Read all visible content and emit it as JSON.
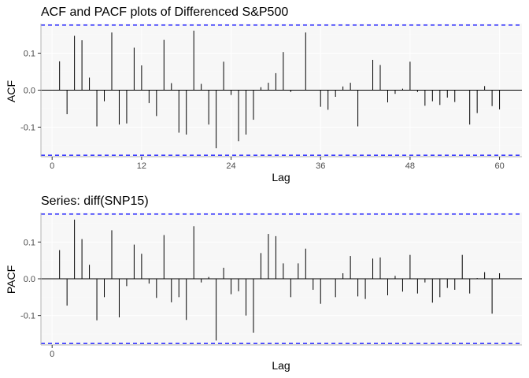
{
  "colors": {
    "panel_bg": "#f7f7f7",
    "grid_major": "#ffffff",
    "grid_minor": "#fbfbfb",
    "bar": "#000000",
    "zero_line": "#000000",
    "ci_line": "#0000ff",
    "axis": "#000000",
    "tick_label": "#4d4d4d"
  },
  "chart_data": [
    {
      "type": "bar",
      "subtype": "acf",
      "title": "ACF and PACF plots of Differenced S&P500",
      "xlabel": "Lag",
      "ylabel": "ACF",
      "xlim": [
        -1.5,
        63
      ],
      "ylim": [
        -0.18,
        0.18
      ],
      "xticks": [
        0,
        12,
        24,
        36,
        48,
        60
      ],
      "yticks": [
        0.1,
        0.0,
        -0.1
      ],
      "ytick_labels": [
        "0.1",
        "0.0",
        "-0.1"
      ],
      "ci": 0.176,
      "grid": true,
      "x": [
        1,
        2,
        3,
        4,
        5,
        6,
        7,
        8,
        9,
        10,
        11,
        12,
        13,
        14,
        15,
        16,
        17,
        18,
        19,
        20,
        21,
        22,
        23,
        24,
        25,
        26,
        27,
        28,
        29,
        30,
        31,
        32,
        33,
        34,
        35,
        36,
        37,
        38,
        39,
        40,
        41,
        42,
        43,
        44,
        45,
        46,
        47,
        48,
        49,
        50,
        51,
        52,
        53,
        54,
        55,
        56,
        57,
        58,
        59,
        60,
        61
      ],
      "values": [
        0.078,
        -0.065,
        0.147,
        0.135,
        0.034,
        -0.098,
        -0.03,
        0.156,
        -0.093,
        -0.09,
        0.115,
        0.067,
        -0.035,
        -0.07,
        0.136,
        0.019,
        -0.115,
        -0.12,
        0.161,
        0.017,
        -0.093,
        -0.157,
        0.077,
        -0.013,
        -0.138,
        -0.12,
        -0.08,
        0.008,
        0.02,
        0.046,
        0.103,
        -0.005,
        0.0,
        0.156,
        0.0,
        -0.045,
        -0.053,
        -0.018,
        0.01,
        0.02,
        -0.098,
        0.0,
        0.082,
        0.068,
        -0.033,
        -0.01,
        0.004,
        0.077,
        -0.005,
        -0.042,
        -0.03,
        -0.04,
        -0.02,
        -0.032,
        0.0,
        -0.093,
        -0.062,
        0.011,
        -0.043,
        -0.052,
        0.0
      ]
    },
    {
      "type": "bar",
      "subtype": "pacf",
      "title": "Series: diff(SNP15)",
      "xlabel": "Lag",
      "ylabel": "PACF",
      "xlim": [
        -1.5,
        63
      ],
      "ylim": [
        -0.18,
        0.18
      ],
      "xticks": [
        0
      ],
      "yticks": [
        0.1,
        0.0,
        -0.1
      ],
      "ytick_labels": [
        "0.1",
        "0.0",
        "-0.1"
      ],
      "ci": 0.176,
      "grid": true,
      "x": [
        1,
        2,
        3,
        4,
        5,
        6,
        7,
        8,
        9,
        10,
        11,
        12,
        13,
        14,
        15,
        16,
        17,
        18,
        19,
        20,
        21,
        22,
        23,
        24,
        25,
        26,
        27,
        28,
        29,
        30,
        31,
        32,
        33,
        34,
        35,
        36,
        37,
        38,
        39,
        40,
        41,
        42,
        43,
        44,
        45,
        46,
        47,
        48,
        49,
        50,
        51,
        52,
        53,
        54,
        55,
        56,
        57,
        58,
        59,
        60
      ],
      "values": [
        0.078,
        -0.073,
        0.161,
        0.108,
        0.038,
        -0.113,
        -0.05,
        0.132,
        -0.105,
        -0.02,
        0.093,
        0.068,
        -0.013,
        -0.052,
        0.119,
        -0.064,
        -0.05,
        -0.112,
        0.143,
        -0.01,
        0.005,
        -0.168,
        0.03,
        -0.042,
        -0.034,
        -0.1,
        -0.147,
        0.07,
        0.122,
        0.116,
        0.042,
        -0.05,
        0.042,
        0.082,
        -0.03,
        -0.068,
        0.0,
        -0.05,
        0.015,
        0.062,
        -0.048,
        -0.055,
        0.055,
        0.058,
        -0.045,
        0.008,
        -0.035,
        0.065,
        -0.04,
        -0.01,
        -0.065,
        -0.05,
        -0.025,
        -0.03,
        0.065,
        -0.04,
        0.002,
        0.018,
        -0.095,
        0.015
      ]
    }
  ]
}
